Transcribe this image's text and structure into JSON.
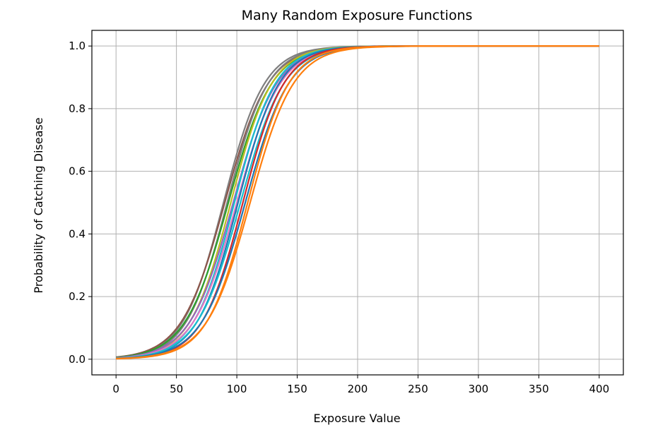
{
  "chart_data": {
    "type": "line",
    "title": "Many Random Exposure Functions",
    "xlabel": "Exposure Value",
    "ylabel": "Probability of Catching Disease",
    "xlim": [
      -20,
      420
    ],
    "ylim": [
      -0.05,
      1.05
    ],
    "xticks": [
      0,
      50,
      100,
      150,
      200,
      250,
      300,
      350,
      400
    ],
    "yticks": [
      0.0,
      0.2,
      0.4,
      0.6,
      0.8,
      1.0
    ],
    "xtick_labels": [
      "0",
      "50",
      "100",
      "150",
      "200",
      "250",
      "300",
      "350",
      "400"
    ],
    "ytick_labels": [
      "0.0",
      "0.2",
      "0.4",
      "0.6",
      "0.8",
      "1.0"
    ],
    "grid": true,
    "x_range": [
      0,
      400
    ],
    "series": [
      {
        "midpoint": 89,
        "scale": 17,
        "color": "#7f7f7f"
      },
      {
        "midpoint": 90,
        "scale": 18,
        "color": "#8c564b"
      },
      {
        "midpoint": 92,
        "scale": 17,
        "color": "#7f7f7f"
      },
      {
        "midpoint": 93,
        "scale": 18,
        "color": "#2ca02c"
      },
      {
        "midpoint": 95,
        "scale": 17,
        "color": "#bcbd22"
      },
      {
        "midpoint": 97,
        "scale": 18,
        "color": "#9467bd"
      },
      {
        "midpoint": 98,
        "scale": 17,
        "color": "#17becf"
      },
      {
        "midpoint": 100,
        "scale": 18,
        "color": "#e377c2"
      },
      {
        "midpoint": 101,
        "scale": 17,
        "color": "#1f77b4"
      },
      {
        "midpoint": 103,
        "scale": 18,
        "color": "#17becf"
      },
      {
        "midpoint": 105,
        "scale": 17,
        "color": "#d62728"
      },
      {
        "midpoint": 107,
        "scale": 18,
        "color": "#1f77b4"
      },
      {
        "midpoint": 109,
        "scale": 17,
        "color": "#ff7f0e"
      },
      {
        "midpoint": 111,
        "scale": 18,
        "color": "#ff7f0e"
      }
    ]
  }
}
